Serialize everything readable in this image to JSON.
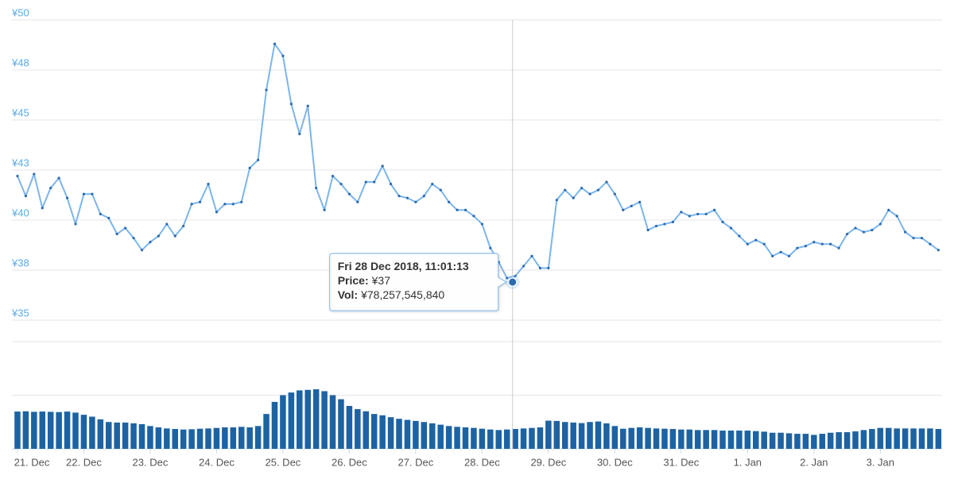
{
  "chart_data": {
    "type": "stock",
    "color": "#7cb5ec",
    "marker_color": "#2a6aae",
    "volume_color": "#1d63a3",
    "grid": true,
    "xlim": [
      "2018-12-20T22:00",
      "2019-01-03T22:20"
    ],
    "ylim": [
      35,
      50
    ],
    "yticks": [
      {
        "value": 35,
        "label": "¥35"
      },
      {
        "value": 37.5,
        "label": "¥38"
      },
      {
        "value": 40,
        "label": "¥40"
      },
      {
        "value": 42.5,
        "label": "¥43"
      },
      {
        "value": 45,
        "label": "¥45"
      },
      {
        "value": 47.5,
        "label": "¥48"
      },
      {
        "value": 50,
        "label": "¥50"
      }
    ],
    "volume_ylim": [
      0,
      400000000000
    ],
    "volume_grid": [
      0,
      200000000000,
      400000000000
    ],
    "xticks": [
      {
        "value": "2018-12-21T00:00",
        "label": "21. Dec"
      },
      {
        "value": "2018-12-22T00:00",
        "label": "22. Dec"
      },
      {
        "value": "2018-12-23T00:00",
        "label": "23. Dec"
      },
      {
        "value": "2018-12-24T00:00",
        "label": "24. Dec"
      },
      {
        "value": "2018-12-25T00:00",
        "label": "25. Dec"
      },
      {
        "value": "2018-12-26T00:00",
        "label": "26. Dec"
      },
      {
        "value": "2018-12-27T00:00",
        "label": "27. Dec"
      },
      {
        "value": "2018-12-28T00:00",
        "label": "28. Dec"
      },
      {
        "value": "2018-12-29T00:00",
        "label": "29. Dec"
      },
      {
        "value": "2018-12-30T00:00",
        "label": "30. Dec"
      },
      {
        "value": "2018-12-31T00:00",
        "label": "31. Dec"
      },
      {
        "value": "2019-01-01T00:00",
        "label": "1. Jan"
      },
      {
        "value": "2019-01-02T00:00",
        "label": "2. Jan"
      },
      {
        "value": "2019-01-03T00:00",
        "label": "3. Jan"
      }
    ],
    "x": [
      "2018-12-21T00:00",
      "2018-12-21T03:00",
      "2018-12-21T06:00",
      "2018-12-21T09:00",
      "2018-12-21T12:00",
      "2018-12-21T15:00",
      "2018-12-21T18:00",
      "2018-12-21T21:00",
      "2018-12-22T00:00",
      "2018-12-22T03:00",
      "2018-12-22T06:00",
      "2018-12-22T09:00",
      "2018-12-22T12:00",
      "2018-12-22T15:00",
      "2018-12-22T18:00",
      "2018-12-22T21:00",
      "2018-12-23T00:00",
      "2018-12-23T03:00",
      "2018-12-23T06:00",
      "2018-12-23T09:00",
      "2018-12-23T12:00",
      "2018-12-23T15:00",
      "2018-12-23T18:00",
      "2018-12-23T21:00",
      "2018-12-24T00:00",
      "2018-12-24T03:00",
      "2018-12-24T06:00",
      "2018-12-24T09:00",
      "2018-12-24T12:00",
      "2018-12-24T15:00",
      "2018-12-24T18:00",
      "2018-12-24T21:00",
      "2018-12-25T00:00",
      "2018-12-25T03:00",
      "2018-12-25T06:00",
      "2018-12-25T09:00",
      "2018-12-25T12:00",
      "2018-12-25T15:00",
      "2018-12-25T18:00",
      "2018-12-25T21:00",
      "2018-12-26T00:00",
      "2018-12-26T03:00",
      "2018-12-26T06:00",
      "2018-12-26T09:00",
      "2018-12-26T12:00",
      "2018-12-26T15:00",
      "2018-12-26T18:00",
      "2018-12-26T21:00",
      "2018-12-27T00:00",
      "2018-12-27T03:00",
      "2018-12-27T06:00",
      "2018-12-27T09:00",
      "2018-12-27T12:00",
      "2018-12-27T15:00",
      "2018-12-27T18:00",
      "2018-12-27T21:00",
      "2018-12-28T00:00",
      "2018-12-28T03:00",
      "2018-12-28T06:00",
      "2018-12-28T09:00",
      "2018-12-28T12:00",
      "2018-12-28T15:00",
      "2018-12-28T18:00",
      "2018-12-28T21:00",
      "2018-12-29T00:00",
      "2018-12-29T03:00",
      "2018-12-29T06:00",
      "2018-12-29T09:00",
      "2018-12-29T12:00",
      "2018-12-29T15:00",
      "2018-12-29T18:00",
      "2018-12-29T21:00",
      "2018-12-30T00:00",
      "2018-12-30T03:00",
      "2018-12-30T06:00",
      "2018-12-30T09:00",
      "2018-12-30T12:00",
      "2018-12-30T15:00",
      "2018-12-30T18:00",
      "2018-12-30T21:00",
      "2018-12-31T00:00",
      "2018-12-31T03:00",
      "2018-12-31T06:00",
      "2018-12-31T09:00",
      "2018-12-31T12:00",
      "2018-12-31T15:00",
      "2018-12-31T18:00",
      "2018-12-31T21:00",
      "2019-01-01T00:00",
      "2019-01-01T03:00",
      "2019-01-01T06:00",
      "2019-01-01T09:00",
      "2019-01-01T12:00",
      "2019-01-01T15:00",
      "2019-01-01T18:00",
      "2019-01-01T21:00",
      "2019-01-02T00:00",
      "2019-01-02T03:00",
      "2019-01-02T06:00",
      "2019-01-02T09:00",
      "2019-01-02T12:00",
      "2019-01-02T15:00",
      "2019-01-02T18:00",
      "2019-01-02T21:00",
      "2019-01-03T00:00",
      "2019-01-03T03:00",
      "2019-01-03T06:00",
      "2019-01-03T09:00",
      "2019-01-03T12:00",
      "2019-01-03T15:00",
      "2019-01-03T18:00",
      "2019-01-03T21:00"
    ],
    "values": [
      42.2,
      41.2,
      42.3,
      40.6,
      41.6,
      42.1,
      41.1,
      39.8,
      41.3,
      41.3,
      40.3,
      40.1,
      39.3,
      39.6,
      39.1,
      38.5,
      38.9,
      39.2,
      39.8,
      39.2,
      39.7,
      40.8,
      40.9,
      41.8,
      40.4,
      40.8,
      40.8,
      40.9,
      42.6,
      43.0,
      46.5,
      48.8,
      48.2,
      45.8,
      44.3,
      45.7,
      41.6,
      40.5,
      42.2,
      41.8,
      41.3,
      40.9,
      41.9,
      41.9,
      42.7,
      41.8,
      41.2,
      41.1,
      40.9,
      41.2,
      41.8,
      41.5,
      40.9,
      40.5,
      40.5,
      40.2,
      39.8,
      38.6,
      37.9,
      37.1,
      37.2,
      37.7,
      38.2,
      37.6,
      37.6,
      41.0,
      41.5,
      41.1,
      41.6,
      41.3,
      41.5,
      41.9,
      41.3,
      40.5,
      40.7,
      40.9,
      39.5,
      39.7,
      39.8,
      39.9,
      40.4,
      40.2,
      40.3,
      40.3,
      40.5,
      39.9,
      39.6,
      39.2,
      38.8,
      39.0,
      38.8,
      38.2,
      38.4,
      38.2,
      38.6,
      38.7,
      38.9,
      38.8,
      38.8,
      38.6,
      39.3,
      39.6,
      39.4,
      39.5,
      39.8,
      40.5,
      40.2,
      39.4,
      39.1,
      39.1,
      38.8,
      38.5
    ],
    "volume": [
      139000000000.0,
      140000000000.0,
      138000000000.0,
      139000000000.0,
      138000000000.0,
      137000000000.0,
      139000000000.0,
      135000000000.0,
      127000000000.0,
      120000000000.0,
      110000000000.0,
      100000000000.0,
      98000000000.0,
      98000000000.0,
      95000000000.0,
      92000000000.0,
      85000000000.0,
      80000000000.0,
      76000000000.0,
      74000000000.0,
      72000000000.0,
      73000000000.0,
      75000000000.0,
      76000000000.0,
      78000000000.0,
      80000000000.0,
      80000000000.0,
      82000000000.0,
      80000000000.0,
      85000000000.0,
      130000000000.0,
      175000000000.0,
      200000000000.0,
      210000000000.0,
      218000000000.0,
      220000000000.0,
      222000000000.0,
      215000000000.0,
      200000000000.0,
      185000000000.0,
      160000000000.0,
      148000000000.0,
      140000000000.0,
      130000000000.0,
      125000000000.0,
      118000000000.0,
      112000000000.0,
      108000000000.0,
      104000000000.0,
      100000000000.0,
      95000000000.0,
      90000000000.0,
      85000000000.0,
      82000000000.0,
      80000000000.0,
      78000000000.0,
      75000000000.0,
      72000000000.0,
      70000000000.0,
      72000000000.0,
      74000000000.0,
      76000000000.0,
      78000000000.0,
      80000000000.0,
      105000000000.0,
      104000000000.0,
      100000000000.0,
      98000000000.0,
      96000000000.0,
      100000000000.0,
      102000000000.0,
      95000000000.0,
      85000000000.0,
      75000000000.0,
      78000000000.0,
      80000000000.0,
      78000000000.0,
      76000000000.0,
      75000000000.0,
      74000000000.0,
      72000000000.0,
      72000000000.0,
      70000000000.0,
      70000000000.0,
      70000000000.0,
      68000000000.0,
      68000000000.0,
      68000000000.0,
      68000000000.0,
      66000000000.0,
      64000000000.0,
      60000000000.0,
      60000000000.0,
      58000000000.0,
      56000000000.0,
      56000000000.0,
      52000000000.0,
      56000000000.0,
      60000000000.0,
      62000000000.0,
      62000000000.0,
      65000000000.0,
      70000000000.0,
      74000000000.0,
      78000000000.0,
      78000000000.0,
      76000000000.0,
      76000000000.0,
      76000000000.0,
      76000000000.0,
      76000000000.0,
      74000000000.0
    ],
    "tooltip": {
      "x": "2018-12-28T11:01:13",
      "value": 36.9,
      "title": "Fri 28 Dec 2018, 11:01:13",
      "items": [
        {
          "label": "Price:",
          "text": "¥37"
        },
        {
          "label": "Vol:",
          "text": "¥78,257,545,840"
        }
      ]
    }
  }
}
